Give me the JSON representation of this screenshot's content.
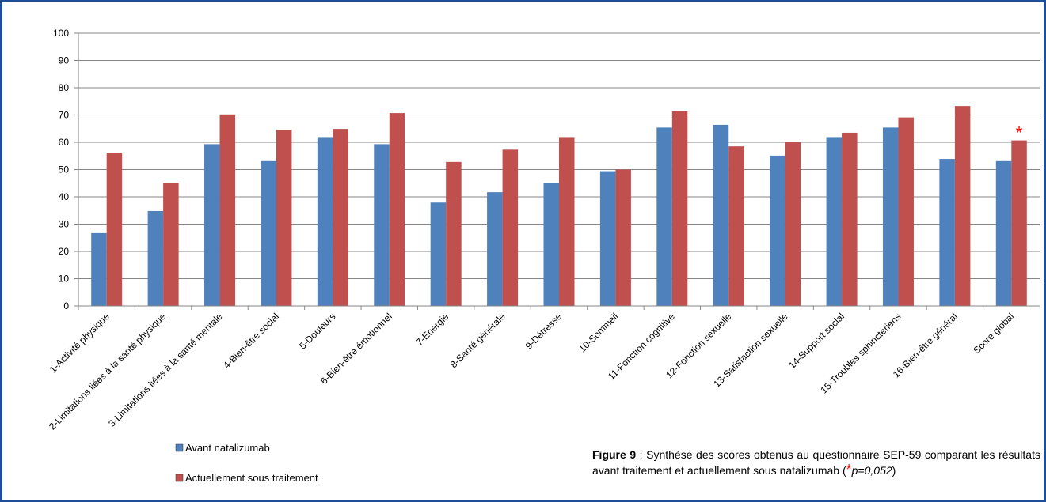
{
  "chart_data": {
    "type": "bar",
    "categories": [
      "1-Activité physique",
      "2-Limitations liées à la santé  physique",
      "3-Limitations liées à la santé  mentale",
      "4-Bien-être social",
      "5-Douleurs",
      "6-Bien-être émotionnel",
      "7-Energie",
      "8-Santé générale",
      "9-Détresse",
      "10-Sommeil",
      "11-Fonction cognitive",
      "12-Fonction sexuelle",
      "13-Satisfaction sexuelle",
      "14-Support social",
      "15-Troubles sphinctériens",
      "16-Bien-être général",
      "Score global"
    ],
    "series": [
      {
        "name": "Avant natalizumab",
        "color": "#4f81bd",
        "values": [
          26.7,
          34.8,
          59.3,
          53.1,
          61.9,
          59.3,
          37.9,
          41.7,
          45.0,
          49.4,
          65.4,
          66.4,
          55.1,
          61.9,
          65.4,
          53.9,
          53.1
        ]
      },
      {
        "name": "Actuellement sous traitement",
        "color": "#c0504d",
        "values": [
          56.2,
          45.1,
          70.2,
          64.6,
          64.9,
          70.7,
          52.8,
          57.3,
          61.9,
          50.0,
          71.4,
          58.5,
          60.0,
          63.5,
          69.1,
          73.3,
          60.7
        ]
      }
    ],
    "ylim": [
      0,
      100
    ],
    "yticks": [
      0,
      10,
      20,
      30,
      40,
      50,
      60,
      70,
      80,
      90,
      100
    ],
    "grid": true,
    "annotations": [
      {
        "text": "*",
        "category": "Score global",
        "color": "#ff0000"
      }
    ]
  },
  "caption": {
    "label": "Figure 9",
    "text": " : Synthèse des scores obtenus au questionnaire SEP-59 comparant les résultats avant traitement et actuellement sous natalizumab (",
    "mark": "*",
    "pvalue": "p=0,052",
    "close": ")"
  }
}
